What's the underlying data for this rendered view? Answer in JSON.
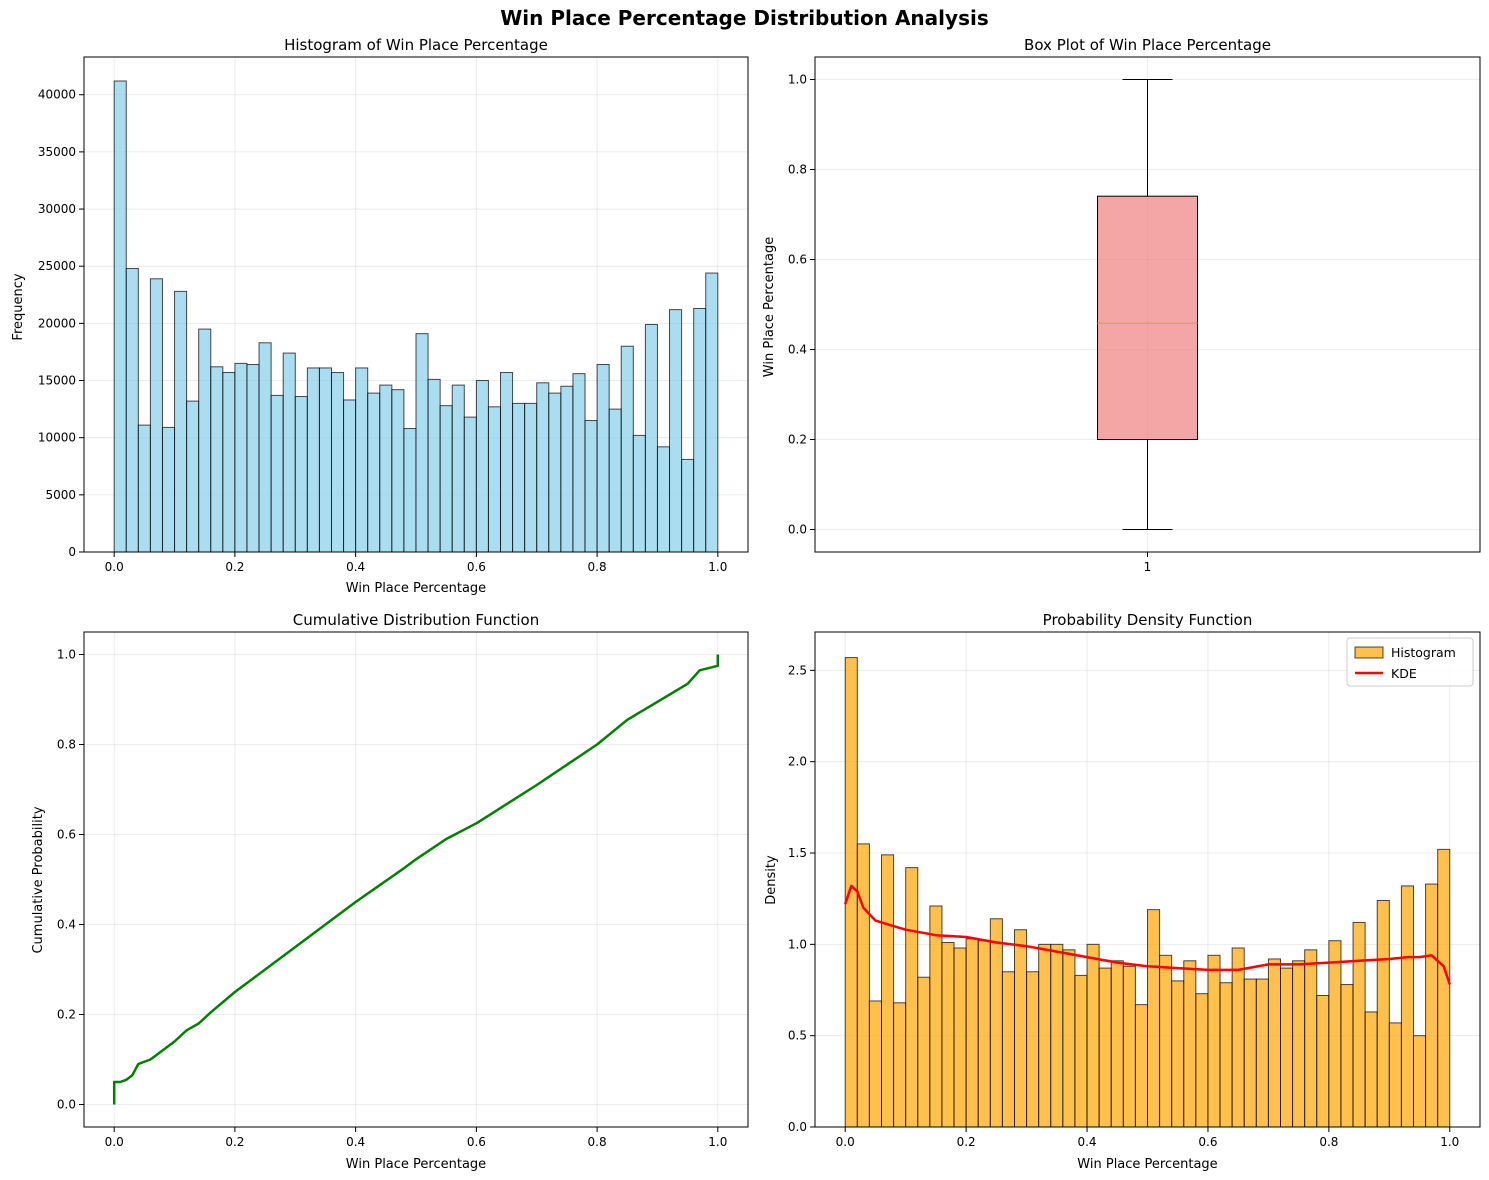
{
  "figure": {
    "suptitle": "Win Place Percentage Distribution Analysis"
  },
  "chart_data": [
    {
      "id": "hist",
      "type": "bar",
      "title": "Histogram of Win Place Percentage",
      "xlabel": "Win Place Percentage",
      "ylabel": "Frequency",
      "xlim": [
        -0.05,
        1.05
      ],
      "ylim": [
        0,
        43300
      ],
      "xticks": [
        0.0,
        0.2,
        0.4,
        0.6,
        0.8,
        1.0
      ],
      "xtick_labels": [
        "0.0",
        "0.2",
        "0.4",
        "0.6",
        "0.8",
        "1.0"
      ],
      "yticks": [
        0,
        5000,
        10000,
        15000,
        20000,
        25000,
        30000,
        35000,
        40000
      ],
      "ytick_labels": [
        "0",
        "5000",
        "10000",
        "15000",
        "20000",
        "25000",
        "30000",
        "35000",
        "40000"
      ],
      "grid": true,
      "bin_start": 0,
      "bin_width": 0.02,
      "values": [
        41200,
        24800,
        11100,
        23900,
        10900,
        22800,
        13200,
        19500,
        16200,
        15700,
        16500,
        16400,
        18300,
        13700,
        17400,
        13600,
        16100,
        16100,
        15700,
        13300,
        16100,
        13900,
        14600,
        14200,
        10800,
        19100,
        15100,
        12800,
        14600,
        11800,
        15000,
        12700,
        15700,
        13000,
        13000,
        14800,
        13900,
        14500,
        15600,
        11500,
        16400,
        12500,
        18000,
        10200,
        19900,
        9200,
        21200,
        8100,
        21300,
        24400
      ],
      "color": "#87ceeb",
      "edge_color": "#000000"
    },
    {
      "id": "box",
      "type": "box",
      "title": "Box Plot of Win Place Percentage",
      "xlabel": "",
      "ylabel": "Win Place Percentage",
      "xlim": [
        0.5,
        1.5
      ],
      "ylim": [
        -0.05,
        1.05
      ],
      "xticks": [
        1
      ],
      "xtick_labels": [
        "1"
      ],
      "yticks": [
        0.0,
        0.2,
        0.4,
        0.6,
        0.8,
        1.0
      ],
      "ytick_labels": [
        "0.0",
        "0.2",
        "0.4",
        "0.6",
        "0.8",
        "1.0"
      ],
      "grid": true,
      "stats": {
        "whislo": 0.0,
        "q1": 0.2,
        "median": 0.4583,
        "q3": 0.7407,
        "whishi": 1.0
      },
      "box_color": "#f08080",
      "median_color": "#d2a34a"
    },
    {
      "id": "cdf",
      "type": "line",
      "title": "Cumulative Distribution Function",
      "xlabel": "Win Place Percentage",
      "ylabel": "Cumulative Probability",
      "xlim": [
        -0.05,
        1.05
      ],
      "ylim": [
        -0.05,
        1.05
      ],
      "xticks": [
        0.0,
        0.2,
        0.4,
        0.6,
        0.8,
        1.0
      ],
      "xtick_labels": [
        "0.0",
        "0.2",
        "0.4",
        "0.6",
        "0.8",
        "1.0"
      ],
      "yticks": [
        0.0,
        0.2,
        0.4,
        0.6,
        0.8,
        1.0
      ],
      "ytick_labels": [
        "0.0",
        "0.2",
        "0.4",
        "0.6",
        "0.8",
        "1.0"
      ],
      "grid": true,
      "x": [
        0.0,
        0.0,
        0.01,
        0.02,
        0.03,
        0.04,
        0.06,
        0.08,
        0.1,
        0.12,
        0.14,
        0.16,
        0.2,
        0.3,
        0.4,
        0.48,
        0.5,
        0.55,
        0.6,
        0.7,
        0.8,
        0.85,
        0.9,
        0.95,
        0.97,
        1.0,
        1.0
      ],
      "y": [
        0.0,
        0.05,
        0.05,
        0.055,
        0.065,
        0.09,
        0.1,
        0.12,
        0.14,
        0.165,
        0.18,
        0.205,
        0.25,
        0.35,
        0.45,
        0.525,
        0.545,
        0.59,
        0.625,
        0.71,
        0.8,
        0.855,
        0.895,
        0.935,
        0.965,
        0.975,
        1.0
      ],
      "color": "#008000"
    },
    {
      "id": "pdf",
      "type": "bar",
      "title": "Probability Density Function",
      "xlabel": "Win Place Percentage",
      "ylabel": "Density",
      "xlim": [
        -0.05,
        1.05
      ],
      "ylim": [
        0,
        2.71
      ],
      "xticks": [
        0.0,
        0.2,
        0.4,
        0.6,
        0.8,
        1.0
      ],
      "xtick_labels": [
        "0.0",
        "0.2",
        "0.4",
        "0.6",
        "0.8",
        "1.0"
      ],
      "yticks": [
        0.0,
        0.5,
        1.0,
        1.5,
        2.0,
        2.5
      ],
      "ytick_labels": [
        "0.0",
        "0.5",
        "1.0",
        "1.5",
        "2.0",
        "2.5"
      ],
      "grid": true,
      "bin_start": 0,
      "bin_width": 0.02,
      "values": [
        2.57,
        1.55,
        0.69,
        1.49,
        0.68,
        1.42,
        0.82,
        1.21,
        1.01,
        0.98,
        1.03,
        1.02,
        1.14,
        0.85,
        1.08,
        0.85,
        1.0,
        1.0,
        0.97,
        0.83,
        1.0,
        0.87,
        0.91,
        0.88,
        0.67,
        1.19,
        0.94,
        0.8,
        0.91,
        0.73,
        0.94,
        0.79,
        0.98,
        0.81,
        0.81,
        0.92,
        0.87,
        0.91,
        0.97,
        0.72,
        1.02,
        0.78,
        1.12,
        0.63,
        1.24,
        0.57,
        1.32,
        0.5,
        1.33,
        1.52
      ],
      "color": "#ffa500",
      "edge_color": "#000000",
      "kde": {
        "x": [
          0.0,
          0.01,
          0.02,
          0.03,
          0.05,
          0.07,
          0.1,
          0.15,
          0.2,
          0.25,
          0.3,
          0.35,
          0.4,
          0.45,
          0.5,
          0.55,
          0.6,
          0.65,
          0.7,
          0.75,
          0.8,
          0.85,
          0.9,
          0.93,
          0.95,
          0.97,
          0.99,
          1.0
        ],
        "y": [
          1.22,
          1.32,
          1.29,
          1.2,
          1.13,
          1.11,
          1.08,
          1.05,
          1.04,
          1.01,
          0.99,
          0.96,
          0.93,
          0.9,
          0.88,
          0.87,
          0.86,
          0.86,
          0.89,
          0.89,
          0.9,
          0.91,
          0.92,
          0.93,
          0.93,
          0.94,
          0.88,
          0.78
        ],
        "color": "#ff0000"
      },
      "legend": {
        "placement": "top-right",
        "entries": [
          "Histogram",
          "KDE"
        ]
      }
    }
  ]
}
